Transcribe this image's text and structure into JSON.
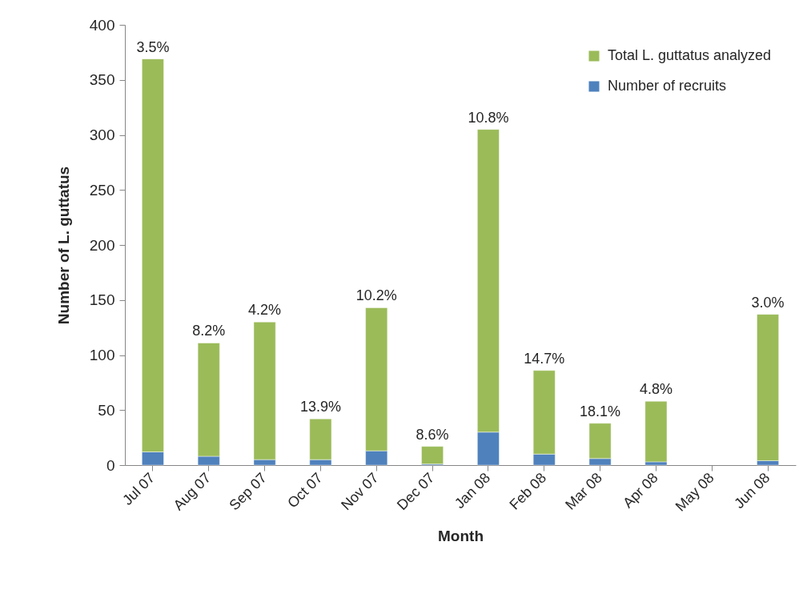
{
  "chart_data": {
    "type": "bar",
    "stacked": true,
    "categories": [
      "Jul 07",
      "Aug 07",
      "Sep 07",
      "Oct 07",
      "Nov 07",
      "Dec 07",
      "Jan 08",
      "Feb 08",
      "Mar 08",
      "Apr 08",
      "May 08",
      "Jun 08"
    ],
    "series": [
      {
        "name": "Number of recruits",
        "color": "#4f81bd",
        "values": [
          12,
          8,
          5,
          5,
          13,
          1,
          30,
          10,
          6,
          3,
          null,
          4
        ]
      },
      {
        "name": "Total L. guttatus analyzed",
        "color": "#9bbb59",
        "values": [
          357,
          103,
          125,
          37,
          130,
          16,
          275,
          76,
          32,
          55,
          null,
          133
        ]
      }
    ],
    "xlabel": "Month",
    "ylabel": "Number of L. guttatus",
    "ylim": [
      0,
      400
    ],
    "yticks": [
      0,
      50,
      100,
      150,
      200,
      250,
      300,
      350,
      400
    ],
    "legend": "top right",
    "annotations": [
      {
        "text": "3.5%",
        "x": "Jul 07",
        "y": 369
      },
      {
        "text": "8.2%",
        "x": "Aug 07",
        "y": 111
      },
      {
        "text": "4.2%",
        "x": "Sep 07",
        "y": 130
      },
      {
        "text": "13.9%",
        "x": "Oct 07",
        "y": 42
      },
      {
        "text": "10.2%",
        "x": "Nov 07",
        "y": 143
      },
      {
        "text": "8.6%",
        "x": "Dec 07",
        "y": 17
      },
      {
        "text": "10.8%",
        "x": "Jan 08",
        "y": 305
      },
      {
        "text": "14.7%",
        "x": "Feb 08",
        "y": 86
      },
      {
        "text": "18.1%",
        "x": "Mar 08",
        "y": 38
      },
      {
        "text": "4.8%",
        "x": "Apr 08",
        "y": 58
      },
      {
        "text": "3.0%",
        "x": "Jun 08",
        "y": 137
      }
    ]
  }
}
